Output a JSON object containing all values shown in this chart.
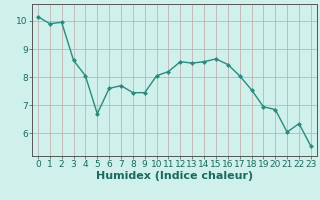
{
  "x": [
    0,
    1,
    2,
    3,
    4,
    5,
    6,
    7,
    8,
    9,
    10,
    11,
    12,
    13,
    14,
    15,
    16,
    17,
    18,
    19,
    20,
    21,
    22,
    23
  ],
  "y": [
    10.15,
    9.9,
    9.95,
    8.6,
    8.05,
    6.7,
    7.6,
    7.7,
    7.45,
    7.45,
    8.05,
    8.2,
    8.55,
    8.5,
    8.55,
    8.65,
    8.45,
    8.05,
    7.55,
    6.95,
    6.85,
    6.05,
    6.35,
    5.55
  ],
  "line_color": "#2a8a7e",
  "marker": "D",
  "marker_size": 2.0,
  "line_width": 1.0,
  "bg_color": "#d0f0ec",
  "grid_color": "#c0a8a8",
  "grid_color_v": "#c0a8a8",
  "xlabel": "Humidex (Indice chaleur)",
  "xlabel_fontsize": 8,
  "tick_fontsize": 6.5,
  "ylim": [
    5.2,
    10.6
  ],
  "xlim": [
    -0.5,
    23.5
  ],
  "yticks": [
    6,
    7,
    8,
    9,
    10
  ],
  "xticks": [
    0,
    1,
    2,
    3,
    4,
    5,
    6,
    7,
    8,
    9,
    10,
    11,
    12,
    13,
    14,
    15,
    16,
    17,
    18,
    19,
    20,
    21,
    22,
    23
  ],
  "spine_color": "#555555",
  "text_color": "#1a6a5e"
}
